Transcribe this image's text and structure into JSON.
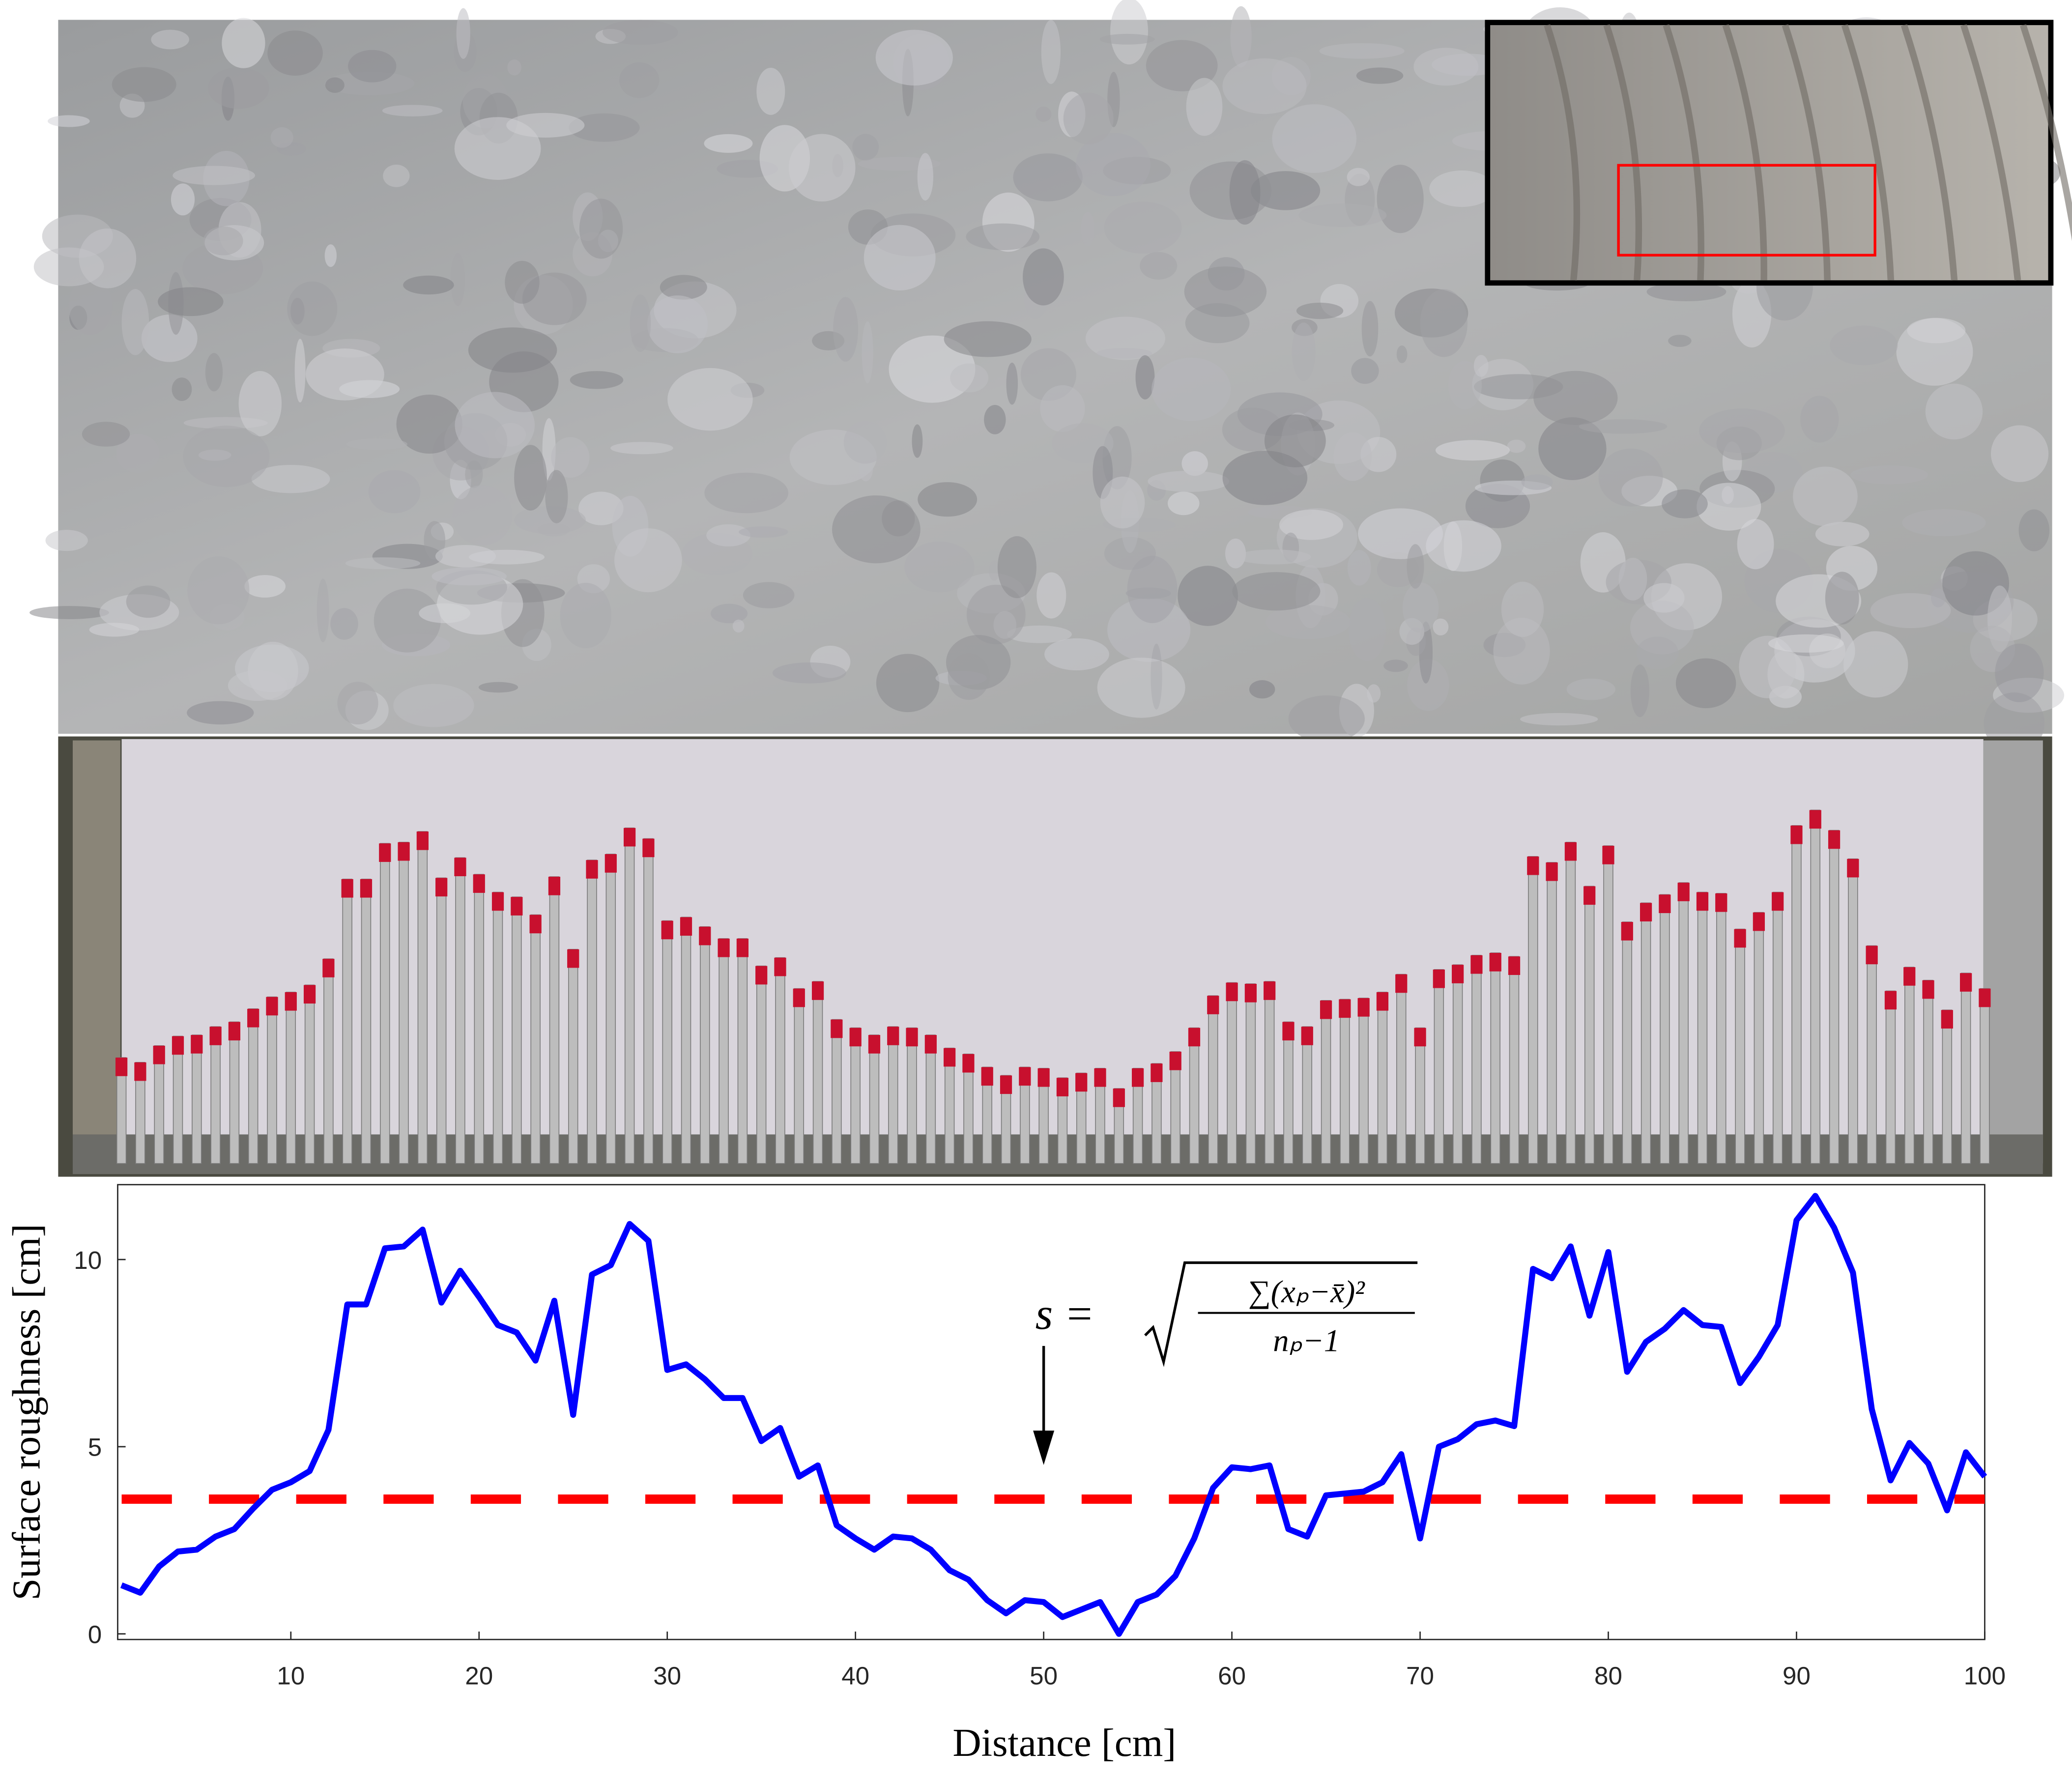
{
  "chart_data": {
    "type": "line",
    "xlabel": "Distance [cm]",
    "ylabel": "Surface roughness [cm]",
    "x": [
      1,
      2,
      3,
      4,
      5,
      6,
      7,
      8,
      9,
      10,
      11,
      12,
      13,
      14,
      15,
      16,
      17,
      18,
      19,
      20,
      21,
      22,
      23,
      24,
      25,
      26,
      27,
      28,
      29,
      30,
      31,
      32,
      33,
      34,
      35,
      36,
      37,
      38,
      39,
      40,
      41,
      42,
      43,
      44,
      45,
      46,
      47,
      48,
      49,
      50,
      51,
      52,
      53,
      54,
      55,
      56,
      57,
      58,
      59,
      60,
      61,
      62,
      63,
      64,
      65,
      66,
      67,
      68,
      69,
      70,
      71,
      72,
      73,
      74,
      75,
      76,
      77,
      78,
      79,
      80,
      81,
      82,
      83,
      84,
      85,
      86,
      87,
      88,
      89,
      90,
      91,
      92,
      93,
      94,
      95,
      96,
      97,
      98,
      99,
      100
    ],
    "series": [
      {
        "color": "#0000ff",
        "values": [
          1.3,
          1.1,
          1.8,
          2.2,
          2.25,
          2.6,
          2.8,
          3.35,
          3.85,
          4.05,
          4.35,
          5.45,
          8.8,
          8.8,
          10.3,
          10.35,
          10.8,
          8.85,
          9.7,
          9.0,
          8.25,
          8.05,
          7.3,
          8.9,
          5.85,
          9.6,
          9.85,
          10.95,
          10.5,
          7.05,
          7.2,
          6.8,
          6.3,
          6.3,
          5.15,
          5.5,
          4.2,
          4.5,
          2.9,
          2.55,
          2.25,
          2.6,
          2.55,
          2.25,
          1.7,
          1.45,
          0.9,
          0.55,
          0.9,
          0.85,
          0.45,
          0.65,
          0.85,
          0.0,
          0.85,
          1.05,
          1.55,
          2.55,
          3.9,
          4.45,
          4.4,
          4.5,
          2.8,
          2.6,
          3.7,
          3.75,
          3.8,
          4.05,
          4.8,
          2.55,
          5.0,
          5.2,
          5.6,
          5.7,
          5.55,
          9.75,
          9.5,
          10.35,
          8.5,
          10.2,
          7.0,
          7.8,
          8.15,
          8.65,
          8.25,
          8.2,
          6.7,
          7.4,
          8.25,
          11.05,
          11.7,
          10.85,
          9.65,
          6.0,
          4.1,
          5.1,
          4.55,
          3.3,
          4.85,
          4.2
        ]
      }
    ],
    "reference_line": {
      "value": 3.6,
      "color": "#ff0000"
    },
    "annotation": {
      "lhs": "s =",
      "numerator": "∑(xₚ−x̄)²",
      "denominator": "nₚ−1",
      "arrow_x": 50
    },
    "xlim": [
      0.8,
      100
    ],
    "ylim": [
      -0.15,
      12
    ],
    "xticks": [
      10,
      20,
      30,
      40,
      50,
      60,
      70,
      80,
      90,
      100
    ],
    "yticks": [
      0,
      5,
      10
    ]
  }
}
